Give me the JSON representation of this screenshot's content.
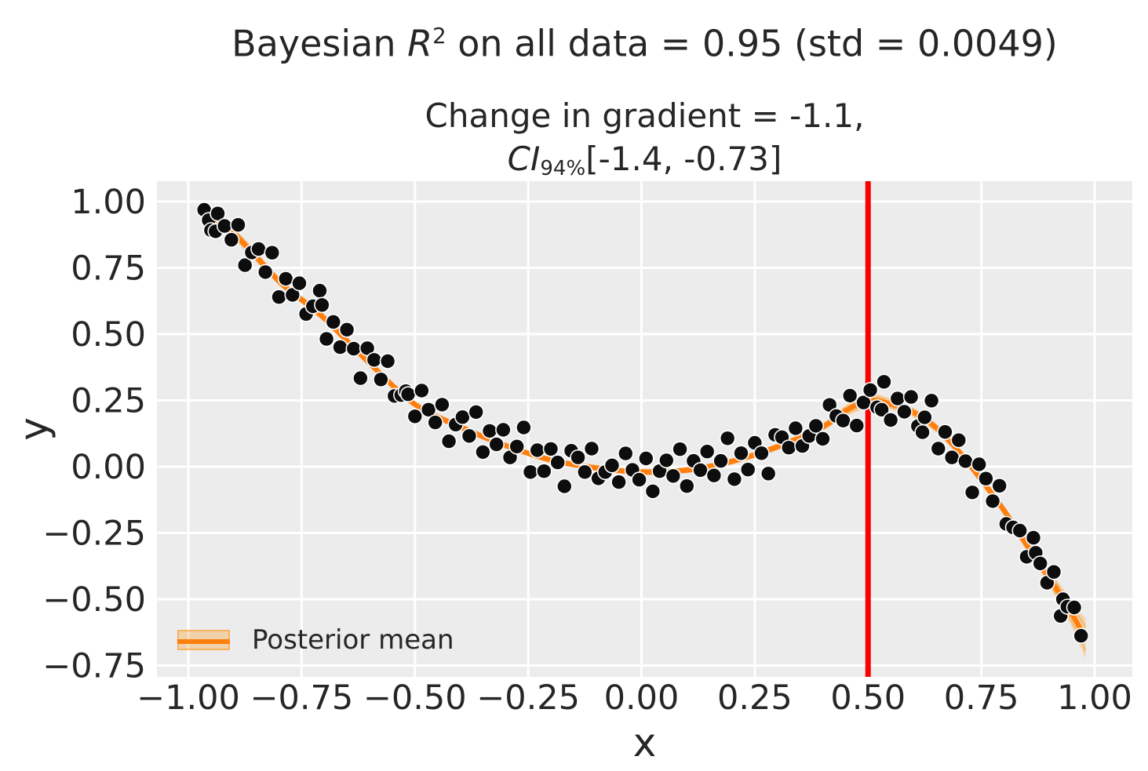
{
  "titles": {
    "main_prefix": "Bayesian ",
    "main_r": "R",
    "main_sup": "2",
    "main_suffix": " on all data = 0.95 (std = 0.0049)",
    "sub_line1": "Change in gradient = -1.1,",
    "sub_ci": "CI",
    "sub_ci_sub": "94%",
    "sub_ci_rest": "[-1.4, -0.73]"
  },
  "axes": {
    "xlabel": "x",
    "ylabel": "y"
  },
  "legend": {
    "label": "Posterior mean"
  },
  "chart_data": {
    "type": "scatter",
    "title": "Bayesian R^2 on all data = 0.95 (std = 0.0049)",
    "subtitle": "Change in gradient = -1.1, CI_94% [-1.4, -0.73]",
    "xlabel": "x",
    "ylabel": "y",
    "xlim": [
      -1.07,
      1.08
    ],
    "ylim": [
      -0.79,
      1.08
    ],
    "grid": true,
    "legend_position": "lower left",
    "xticks": {
      "values": [
        -1.0,
        -0.75,
        -0.5,
        -0.25,
        0.0,
        0.25,
        0.5,
        0.75,
        1.0
      ],
      "labels": [
        "−1.00",
        "−0.75",
        "−0.50",
        "−0.25",
        "0.00",
        "0.25",
        "0.50",
        "0.75",
        "1.00"
      ]
    },
    "yticks": {
      "values": [
        1.0,
        0.75,
        0.5,
        0.25,
        0.0,
        -0.25,
        -0.5,
        -0.75
      ],
      "labels": [
        "1.00",
        "0.75",
        "0.50",
        "0.25",
        "0.00",
        "−0.25",
        "−0.50",
        "−0.75"
      ]
    },
    "vline": {
      "x": 0.5
    },
    "posterior_mean": {
      "knots": [
        [
          -0.97,
          0.96
        ],
        [
          -0.9,
          0.88
        ],
        [
          -0.8,
          0.7
        ],
        [
          -0.75,
          0.63
        ],
        [
          -0.7,
          0.56
        ],
        [
          -0.6,
          0.39
        ],
        [
          -0.5,
          0.235
        ],
        [
          -0.4,
          0.15
        ],
        [
          -0.3,
          0.08
        ],
        [
          -0.2,
          0.025
        ],
        [
          -0.1,
          -0.005
        ],
        [
          0.0,
          -0.02
        ],
        [
          0.1,
          -0.013
        ],
        [
          0.2,
          0.02
        ],
        [
          0.3,
          0.075
        ],
        [
          0.4,
          0.15
        ],
        [
          0.45,
          0.21
        ],
        [
          0.5,
          0.25
        ],
        [
          0.55,
          0.236
        ],
        [
          0.6,
          0.205
        ],
        [
          0.65,
          0.147
        ],
        [
          0.7,
          0.058
        ],
        [
          0.75,
          -0.05
        ],
        [
          0.8,
          -0.165
        ],
        [
          0.85,
          -0.295
        ],
        [
          0.9,
          -0.42
        ],
        [
          0.95,
          -0.555
        ],
        [
          0.98,
          -0.65
        ]
      ],
      "band_halfwidth": [
        0.035,
        0.022,
        0.016,
        0.015,
        0.015,
        0.014,
        0.013,
        0.013,
        0.012,
        0.012,
        0.012,
        0.012,
        0.012,
        0.012,
        0.013,
        0.015,
        0.02,
        0.027,
        0.02,
        0.017,
        0.016,
        0.016,
        0.017,
        0.018,
        0.022,
        0.03,
        0.05,
        0.075
      ]
    },
    "scatter_points": [
      [
        -0.965,
        0.969
      ],
      [
        -0.955,
        0.93
      ],
      [
        -0.95,
        0.892
      ],
      [
        -0.94,
        0.888
      ],
      [
        -0.935,
        0.955
      ],
      [
        -0.92,
        0.908
      ],
      [
        -0.905,
        0.856
      ],
      [
        -0.89,
        0.912
      ],
      [
        -0.875,
        0.76
      ],
      [
        -0.86,
        0.808
      ],
      [
        -0.845,
        0.821
      ],
      [
        -0.83,
        0.734
      ],
      [
        -0.815,
        0.807
      ],
      [
        -0.8,
        0.64
      ],
      [
        -0.785,
        0.709
      ],
      [
        -0.77,
        0.648
      ],
      [
        -0.755,
        0.692
      ],
      [
        -0.74,
        0.576
      ],
      [
        -0.725,
        0.605
      ],
      [
        -0.71,
        0.664
      ],
      [
        -0.705,
        0.61
      ],
      [
        -0.695,
        0.482
      ],
      [
        -0.68,
        0.546
      ],
      [
        -0.665,
        0.451
      ],
      [
        -0.65,
        0.517
      ],
      [
        -0.635,
        0.445
      ],
      [
        -0.62,
        0.334
      ],
      [
        -0.605,
        0.447
      ],
      [
        -0.59,
        0.403
      ],
      [
        -0.575,
        0.329
      ],
      [
        -0.56,
        0.398
      ],
      [
        -0.545,
        0.267
      ],
      [
        -0.53,
        0.27
      ],
      [
        -0.52,
        0.285
      ],
      [
        -0.515,
        0.273
      ],
      [
        -0.5,
        0.19
      ],
      [
        -0.485,
        0.287
      ],
      [
        -0.47,
        0.215
      ],
      [
        -0.455,
        0.167
      ],
      [
        -0.44,
        0.234
      ],
      [
        -0.425,
        0.096
      ],
      [
        -0.41,
        0.159
      ],
      [
        -0.395,
        0.187
      ],
      [
        -0.38,
        0.116
      ],
      [
        -0.365,
        0.206
      ],
      [
        -0.35,
        0.055
      ],
      [
        -0.335,
        0.135
      ],
      [
        -0.32,
        0.084
      ],
      [
        -0.305,
        0.139
      ],
      [
        -0.29,
        0.035
      ],
      [
        -0.275,
        0.076
      ],
      [
        -0.26,
        0.148
      ],
      [
        -0.245,
        -0.02
      ],
      [
        -0.23,
        0.062
      ],
      [
        -0.215,
        -0.017
      ],
      [
        -0.2,
        0.067
      ],
      [
        -0.185,
        0.016
      ],
      [
        -0.17,
        -0.074
      ],
      [
        -0.155,
        0.06
      ],
      [
        -0.14,
        0.035
      ],
      [
        -0.125,
        -0.02
      ],
      [
        -0.11,
        0.068
      ],
      [
        -0.095,
        -0.044
      ],
      [
        -0.08,
        -0.02
      ],
      [
        -0.065,
        0.005
      ],
      [
        -0.05,
        -0.058
      ],
      [
        -0.035,
        0.05
      ],
      [
        -0.02,
        -0.012
      ],
      [
        -0.005,
        -0.049
      ],
      [
        0.01,
        0.031
      ],
      [
        0.025,
        -0.093
      ],
      [
        0.04,
        -0.017
      ],
      [
        0.055,
        0.024
      ],
      [
        0.07,
        -0.035
      ],
      [
        0.085,
        0.066
      ],
      [
        0.1,
        -0.073
      ],
      [
        0.115,
        0.022
      ],
      [
        0.13,
        -0.013
      ],
      [
        0.145,
        0.057
      ],
      [
        0.16,
        -0.033
      ],
      [
        0.175,
        0.022
      ],
      [
        0.19,
        0.107
      ],
      [
        0.205,
        -0.047
      ],
      [
        0.22,
        0.051
      ],
      [
        0.235,
        -0.011
      ],
      [
        0.25,
        0.09
      ],
      [
        0.265,
        0.051
      ],
      [
        0.28,
        -0.026
      ],
      [
        0.295,
        0.12
      ],
      [
        0.31,
        0.111
      ],
      [
        0.325,
        0.072
      ],
      [
        0.34,
        0.145
      ],
      [
        0.355,
        0.078
      ],
      [
        0.37,
        0.116
      ],
      [
        0.385,
        0.154
      ],
      [
        0.4,
        0.105
      ],
      [
        0.415,
        0.233
      ],
      [
        0.43,
        0.191
      ],
      [
        0.445,
        0.174
      ],
      [
        0.46,
        0.268
      ],
      [
        0.475,
        0.155
      ],
      [
        0.49,
        0.242
      ],
      [
        0.505,
        0.289
      ],
      [
        0.52,
        0.224
      ],
      [
        0.53,
        0.215
      ],
      [
        0.535,
        0.32
      ],
      [
        0.55,
        0.176
      ],
      [
        0.565,
        0.257
      ],
      [
        0.58,
        0.207
      ],
      [
        0.595,
        0.263
      ],
      [
        0.61,
        0.153
      ],
      [
        0.62,
        0.13
      ],
      [
        0.625,
        0.186
      ],
      [
        0.64,
        0.249
      ],
      [
        0.655,
        0.068
      ],
      [
        0.67,
        0.131
      ],
      [
        0.685,
        0.035
      ],
      [
        0.7,
        0.1
      ],
      [
        0.715,
        0.021
      ],
      [
        0.73,
        -0.097
      ],
      [
        0.745,
        0.009
      ],
      [
        0.76,
        -0.045
      ],
      [
        0.775,
        -0.13
      ],
      [
        0.79,
        -0.072
      ],
      [
        0.805,
        -0.216
      ],
      [
        0.82,
        -0.229
      ],
      [
        0.835,
        -0.241
      ],
      [
        0.85,
        -0.34
      ],
      [
        0.865,
        -0.268
      ],
      [
        0.87,
        -0.325
      ],
      [
        0.88,
        -0.365
      ],
      [
        0.895,
        -0.438
      ],
      [
        0.91,
        -0.397
      ],
      [
        0.925,
        -0.563
      ],
      [
        0.93,
        -0.5
      ],
      [
        0.94,
        -0.528
      ],
      [
        0.955,
        -0.531
      ],
      [
        0.97,
        -0.638
      ]
    ],
    "colors": {
      "scatter": "#0d0d0d",
      "scatter_edge": "#ffffff",
      "line": "#ff7f0e",
      "band": "rgba(255,140,0,0.25)",
      "strand": "rgba(255,145,20,0.4)",
      "vline": "#f90000",
      "plot_bg": "#ececec",
      "grid": "#ffffff",
      "text": "#262626"
    }
  }
}
